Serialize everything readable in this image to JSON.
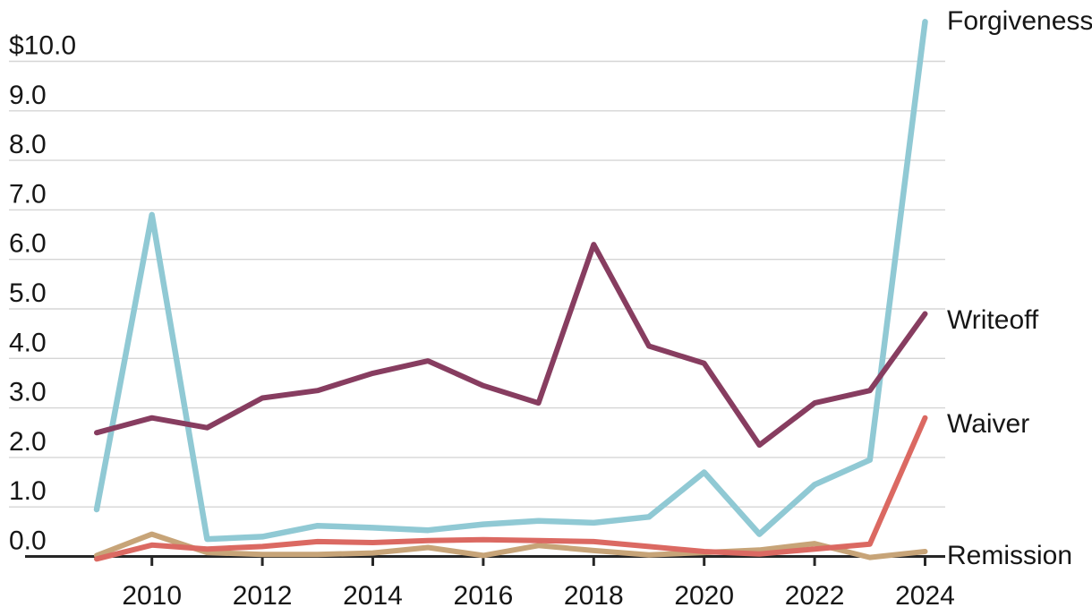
{
  "chart_data": {
    "type": "line",
    "title": "",
    "currency_prefix": "$",
    "x": [
      2009,
      2010,
      2011,
      2012,
      2013,
      2014,
      2015,
      2016,
      2017,
      2018,
      2019,
      2020,
      2021,
      2022,
      2023,
      2024
    ],
    "x_axis": {
      "tick_years": [
        2010,
        2012,
        2014,
        2016,
        2018,
        2020,
        2022,
        2024
      ],
      "tick_labels": [
        "2010",
        "2012",
        "2014",
        "2016",
        "2018",
        "2020",
        "2022",
        "2024"
      ]
    },
    "y_axis": {
      "tick_values": [
        0,
        1,
        2,
        3,
        4,
        5,
        6,
        7,
        8,
        9,
        10
      ],
      "tick_labels": [
        "0.0",
        "1.0",
        "2.0",
        "3.0",
        "4.0",
        "5.0",
        "6.0",
        "7.0",
        "8.0",
        "9.0",
        "$10.0"
      ],
      "range": [
        -0.15,
        11.0
      ]
    },
    "series": [
      {
        "name": "Forgiveness",
        "color": "#90c9d4",
        "values": [
          0.95,
          6.9,
          0.35,
          0.4,
          0.62,
          0.58,
          0.53,
          0.65,
          0.72,
          0.68,
          0.8,
          1.7,
          0.45,
          1.45,
          1.95,
          10.8
        ]
      },
      {
        "name": "Writeoff",
        "color": "#873d60",
        "values": [
          2.5,
          2.8,
          2.6,
          3.2,
          3.35,
          3.7,
          3.95,
          3.45,
          3.1,
          6.3,
          4.25,
          3.9,
          2.25,
          3.1,
          3.35,
          4.9
        ]
      },
      {
        "name": "Waiver",
        "color": "#db6962",
        "values": [
          -0.05,
          0.23,
          0.15,
          0.2,
          0.3,
          0.28,
          0.32,
          0.34,
          0.32,
          0.3,
          0.2,
          0.1,
          0.05,
          0.15,
          0.25,
          2.8
        ]
      },
      {
        "name": "Remission",
        "color": "#c7a478",
        "values": [
          0.02,
          0.45,
          0.08,
          0.04,
          0.04,
          0.07,
          0.18,
          0.02,
          0.22,
          0.12,
          0.03,
          0.08,
          0.13,
          0.26,
          -0.02,
          0.1
        ]
      }
    ],
    "grid": true,
    "legend_position": "right-end-labels",
    "colors": {
      "axis": "#262626",
      "gridline": "#d5d5d5",
      "text": "#161616",
      "background": "#ffffff"
    }
  }
}
